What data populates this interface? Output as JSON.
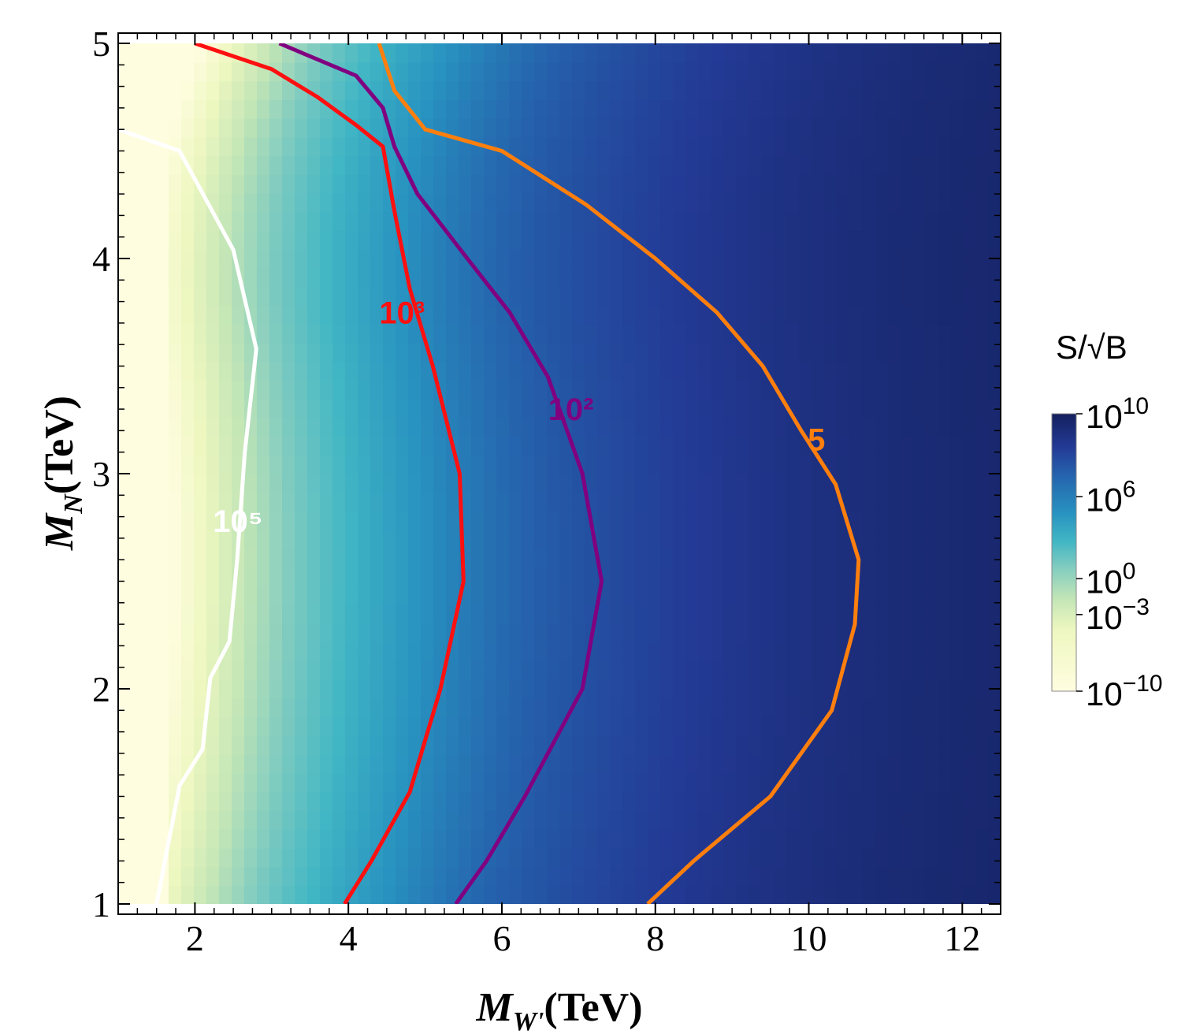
{
  "chart_data": {
    "type": "contour",
    "xlabel": {
      "main": "M",
      "sub": "W'",
      "unit": "(TeV)"
    },
    "ylabel": {
      "main": "M",
      "sub": "N",
      "unit": "(TeV)"
    },
    "xlim": [
      1,
      12.5
    ],
    "ylim": [
      1,
      5
    ],
    "xticks": [
      2,
      4,
      6,
      8,
      10,
      12
    ],
    "yticks": [
      1,
      2,
      3,
      4,
      5
    ],
    "grid": false,
    "colorbar": {
      "title": "S/√B",
      "scale": "log",
      "ticks": [
        {
          "base": "10",
          "exp": "10",
          "value": 10
        },
        {
          "base": "10",
          "exp": "6",
          "value": 6
        },
        {
          "base": "10",
          "exp": "0",
          "value": 0
        },
        {
          "base": "10",
          "exp": "−3",
          "value": -3
        },
        {
          "base": "10",
          "exp": "−10",
          "value": -10
        }
      ],
      "colors": [
        "#fffde0",
        "#eef7c0",
        "#c4e6b6",
        "#7fcbc0",
        "#41b6c4",
        "#2893c0",
        "#2563ad",
        "#233a95",
        "#14205e"
      ]
    },
    "contours": [
      {
        "level_label": "10⁵",
        "color": "#ffffff",
        "label_at": [
          2.56,
          2.78
        ],
        "points": [
          [
            1.5,
            1.0
          ],
          [
            1.8,
            1.55
          ],
          [
            2.1,
            1.72
          ],
          [
            2.2,
            2.05
          ],
          [
            2.45,
            2.22
          ],
          [
            2.55,
            2.6
          ],
          [
            2.65,
            3.1
          ],
          [
            2.8,
            3.58
          ],
          [
            2.5,
            4.04
          ],
          [
            1.8,
            4.5
          ],
          [
            1.0,
            4.6
          ]
        ]
      },
      {
        "level_label": "10³",
        "color": "#ff1010",
        "label_at": [
          4.7,
          3.75
        ],
        "points": [
          [
            3.95,
            1.0
          ],
          [
            4.3,
            1.2
          ],
          [
            4.8,
            1.52
          ],
          [
            5.2,
            2.0
          ],
          [
            5.5,
            2.5
          ],
          [
            5.45,
            3.0
          ],
          [
            5.1,
            3.5
          ],
          [
            4.8,
            3.86
          ],
          [
            4.6,
            4.22
          ],
          [
            4.45,
            4.52
          ],
          [
            4.1,
            4.62
          ],
          [
            3.6,
            4.75
          ],
          [
            3.0,
            4.88
          ],
          [
            2.0,
            5.0
          ]
        ]
      },
      {
        "level_label": "10²",
        "color": "#800080",
        "label_at": [
          6.9,
          3.3
        ],
        "points": [
          [
            5.4,
            1.0
          ],
          [
            5.8,
            1.2
          ],
          [
            6.3,
            1.5
          ],
          [
            7.05,
            2.0
          ],
          [
            7.3,
            2.5
          ],
          [
            7.05,
            3.0
          ],
          [
            6.6,
            3.45
          ],
          [
            6.1,
            3.75
          ],
          [
            5.55,
            4.0
          ],
          [
            4.9,
            4.3
          ],
          [
            4.6,
            4.52
          ],
          [
            4.45,
            4.7
          ],
          [
            4.1,
            4.85
          ],
          [
            3.1,
            5.0
          ]
        ]
      },
      {
        "level_label": "5",
        "color": "#ff7f0e",
        "label_at": [
          10.1,
          3.16
        ],
        "points": [
          [
            7.9,
            1.0
          ],
          [
            8.5,
            1.2
          ],
          [
            9.5,
            1.5
          ],
          [
            10.3,
            1.9
          ],
          [
            10.6,
            2.3
          ],
          [
            10.65,
            2.6
          ],
          [
            10.35,
            2.95
          ],
          [
            9.9,
            3.2
          ],
          [
            9.4,
            3.5
          ],
          [
            8.8,
            3.75
          ],
          [
            8.0,
            4.0
          ],
          [
            7.1,
            4.25
          ],
          [
            6.0,
            4.5
          ],
          [
            5.0,
            4.6
          ],
          [
            4.6,
            4.78
          ],
          [
            4.4,
            5.0
          ]
        ]
      }
    ]
  }
}
